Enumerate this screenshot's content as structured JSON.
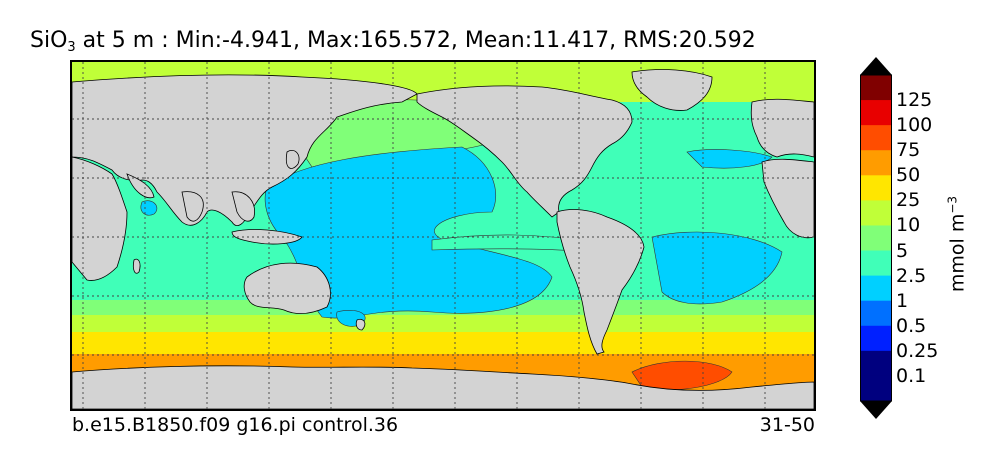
{
  "title": {
    "variable": "SiO",
    "subscript": "3",
    "rest": " at 5 m : Min:-4.941, Max:165.572, Mean:11.417, RMS:20.592"
  },
  "footer": {
    "case": "b.e15.B1850.f09 g16.pi control.36",
    "years": "31-50"
  },
  "colorbar": {
    "label_main": "mmol m",
    "label_exp": "−3",
    "levels": [
      "0.1",
      "0.25",
      "0.5",
      "1",
      "2.5",
      "5",
      "10",
      "25",
      "50",
      "75",
      "100",
      "125"
    ],
    "colors": [
      "#00007f",
      "#0020ff",
      "#0070ff",
      "#00d0ff",
      "#40ffb8",
      "#80ff78",
      "#c0ff38",
      "#ffe600",
      "#ff9c00",
      "#ff4d00",
      "#e80000",
      "#800000"
    ],
    "under_color": "#000000",
    "over_color": "#000000"
  },
  "map": {
    "land_color": "#d3d3d3",
    "gridline_style": "dotted"
  }
}
